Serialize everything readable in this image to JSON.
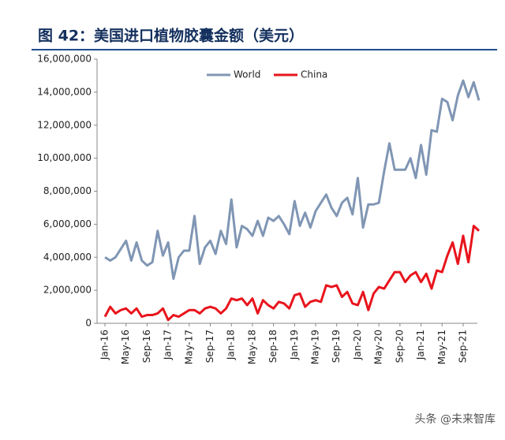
{
  "chart_data": {
    "type": "line",
    "title": "图 42：美国进口植物胶囊金额（美元）",
    "categories": [
      "Jan-16",
      null,
      null,
      null,
      "May-16",
      null,
      null,
      null,
      "Sep-16",
      null,
      null,
      null,
      "Jan-17",
      null,
      null,
      null,
      "May-17",
      null,
      null,
      null,
      "Sep-17",
      null,
      null,
      null,
      "Jan-18",
      null,
      null,
      null,
      "May-18",
      null,
      null,
      null,
      "Sep-18",
      null,
      null,
      null,
      "Jan-19",
      null,
      null,
      null,
      "May-19",
      null,
      null,
      null,
      "Sep-19",
      null,
      null,
      null,
      "Jan-20",
      null,
      null,
      null,
      "May-20",
      null,
      null,
      null,
      "Sep-20",
      null,
      null,
      null,
      "Jan-21",
      null,
      null,
      null,
      "May-21",
      null,
      null,
      null,
      "Sep-21",
      null,
      null,
      null
    ],
    "series": [
      {
        "name": "World",
        "color": "#8096b4",
        "values": [
          4000000,
          3800000,
          4000000,
          4500000,
          5000000,
          3800000,
          4900000,
          3800000,
          3500000,
          3700000,
          5600000,
          4100000,
          4900000,
          2700000,
          4000000,
          4400000,
          4400000,
          6500000,
          3600000,
          4600000,
          5000000,
          4200000,
          5600000,
          4800000,
          7500000,
          4600000,
          5900000,
          5700000,
          5300000,
          6200000,
          5300000,
          6400000,
          6200000,
          6500000,
          6000000,
          5400000,
          7400000,
          5900000,
          6700000,
          5800000,
          6800000,
          7300000,
          7800000,
          7000000,
          6500000,
          7300000,
          7600000,
          6600000,
          8800000,
          5800000,
          7200000,
          7200000,
          7300000,
          9200000,
          10900000,
          9300000,
          9300000,
          9300000,
          10000000,
          8800000,
          10800000,
          9000000,
          11700000,
          11600000,
          13600000,
          13400000,
          12300000,
          13800000,
          14700000,
          13700000,
          14600000,
          13500000
        ]
      },
      {
        "name": "China",
        "color": "#e8141c",
        "values": [
          400000,
          1000000,
          600000,
          800000,
          900000,
          600000,
          900000,
          400000,
          500000,
          500000,
          600000,
          900000,
          200000,
          500000,
          400000,
          600000,
          800000,
          800000,
          600000,
          900000,
          1000000,
          900000,
          600000,
          900000,
          1500000,
          1400000,
          1500000,
          1100000,
          1500000,
          600000,
          1400000,
          1100000,
          900000,
          1300000,
          1200000,
          900000,
          1700000,
          1800000,
          1000000,
          1300000,
          1400000,
          1300000,
          2300000,
          2200000,
          2300000,
          1600000,
          1900000,
          1200000,
          1100000,
          1900000,
          800000,
          1800000,
          2200000,
          2100000,
          2600000,
          3100000,
          3100000,
          2500000,
          2900000,
          3100000,
          2500000,
          3000000,
          2100000,
          3200000,
          3100000,
          4100000,
          4900000,
          3600000,
          5300000,
          3700000,
          5900000,
          5600000
        ]
      }
    ],
    "ylim": [
      0,
      16000000
    ],
    "yticks": [
      0,
      {
        "value": 2000000,
        "label": "2,000,000"
      },
      {
        "value": 4000000,
        "label": "4,000,000"
      },
      {
        "value": 6000000,
        "label": "6,000,000"
      },
      {
        "value": 8000000,
        "label": "8,000,000"
      },
      {
        "value": 10000000,
        "label": "10,000,000"
      },
      {
        "value": 12000000,
        "label": "12,000,000"
      },
      {
        "value": 14000000,
        "label": "14,000,000"
      },
      {
        "value": 16000000,
        "label": "16,000,000"
      }
    ],
    "legend": "top"
  },
  "watermark": "头条 @未来智库"
}
